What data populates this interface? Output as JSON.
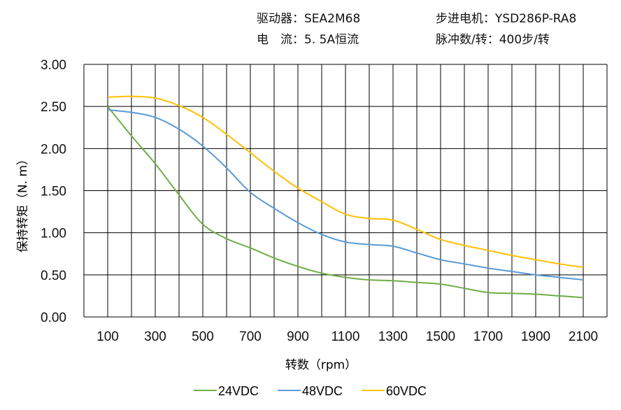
{
  "header": {
    "driver": "驱动器：SEA2M68",
    "motor": "步进电机：YSD286P-RA8",
    "current": "电　流：5. 5A恒流",
    "pulses": "脉冲数/转：400步/转"
  },
  "chart_data": {
    "type": "line",
    "xlabel": "转数（rpm）",
    "ylabel": "保持转矩（N. m）",
    "xlim": [
      0,
      2200
    ],
    "ylim": [
      0,
      3
    ],
    "grid": true,
    "legend_position": "bottom",
    "x_ticks": [
      "100",
      "300",
      "500",
      "700",
      "900",
      "1100",
      "1300",
      "1500",
      "1700",
      "1900",
      "2100"
    ],
    "y_ticks": [
      "0.00",
      "0.50",
      "1.00",
      "1.50",
      "2.00",
      "2.50",
      "3.00"
    ],
    "x": [
      100,
      200,
      300,
      400,
      500,
      600,
      700,
      800,
      900,
      1000,
      1100,
      1200,
      1300,
      1400,
      1500,
      1600,
      1700,
      1800,
      1900,
      2000,
      2100
    ],
    "series": [
      {
        "name": "24VDC",
        "color": "#70ad47",
        "values": [
          2.5,
          2.15,
          1.82,
          1.45,
          1.1,
          0.93,
          0.82,
          0.7,
          0.6,
          0.52,
          0.47,
          0.44,
          0.43,
          0.41,
          0.39,
          0.34,
          0.29,
          0.28,
          0.27,
          0.25,
          0.23
        ]
      },
      {
        "name": "48VDC",
        "color": "#5b9bd5",
        "values": [
          2.46,
          2.43,
          2.37,
          2.23,
          2.03,
          1.77,
          1.48,
          1.29,
          1.12,
          0.98,
          0.89,
          0.86,
          0.84,
          0.76,
          0.68,
          0.63,
          0.58,
          0.54,
          0.5,
          0.47,
          0.44
        ]
      },
      {
        "name": "60VDC",
        "color": "#ffc000",
        "values": [
          2.61,
          2.62,
          2.6,
          2.51,
          2.37,
          2.17,
          1.95,
          1.73,
          1.53,
          1.37,
          1.22,
          1.17,
          1.15,
          1.04,
          0.92,
          0.85,
          0.79,
          0.73,
          0.68,
          0.63,
          0.59
        ]
      }
    ]
  }
}
